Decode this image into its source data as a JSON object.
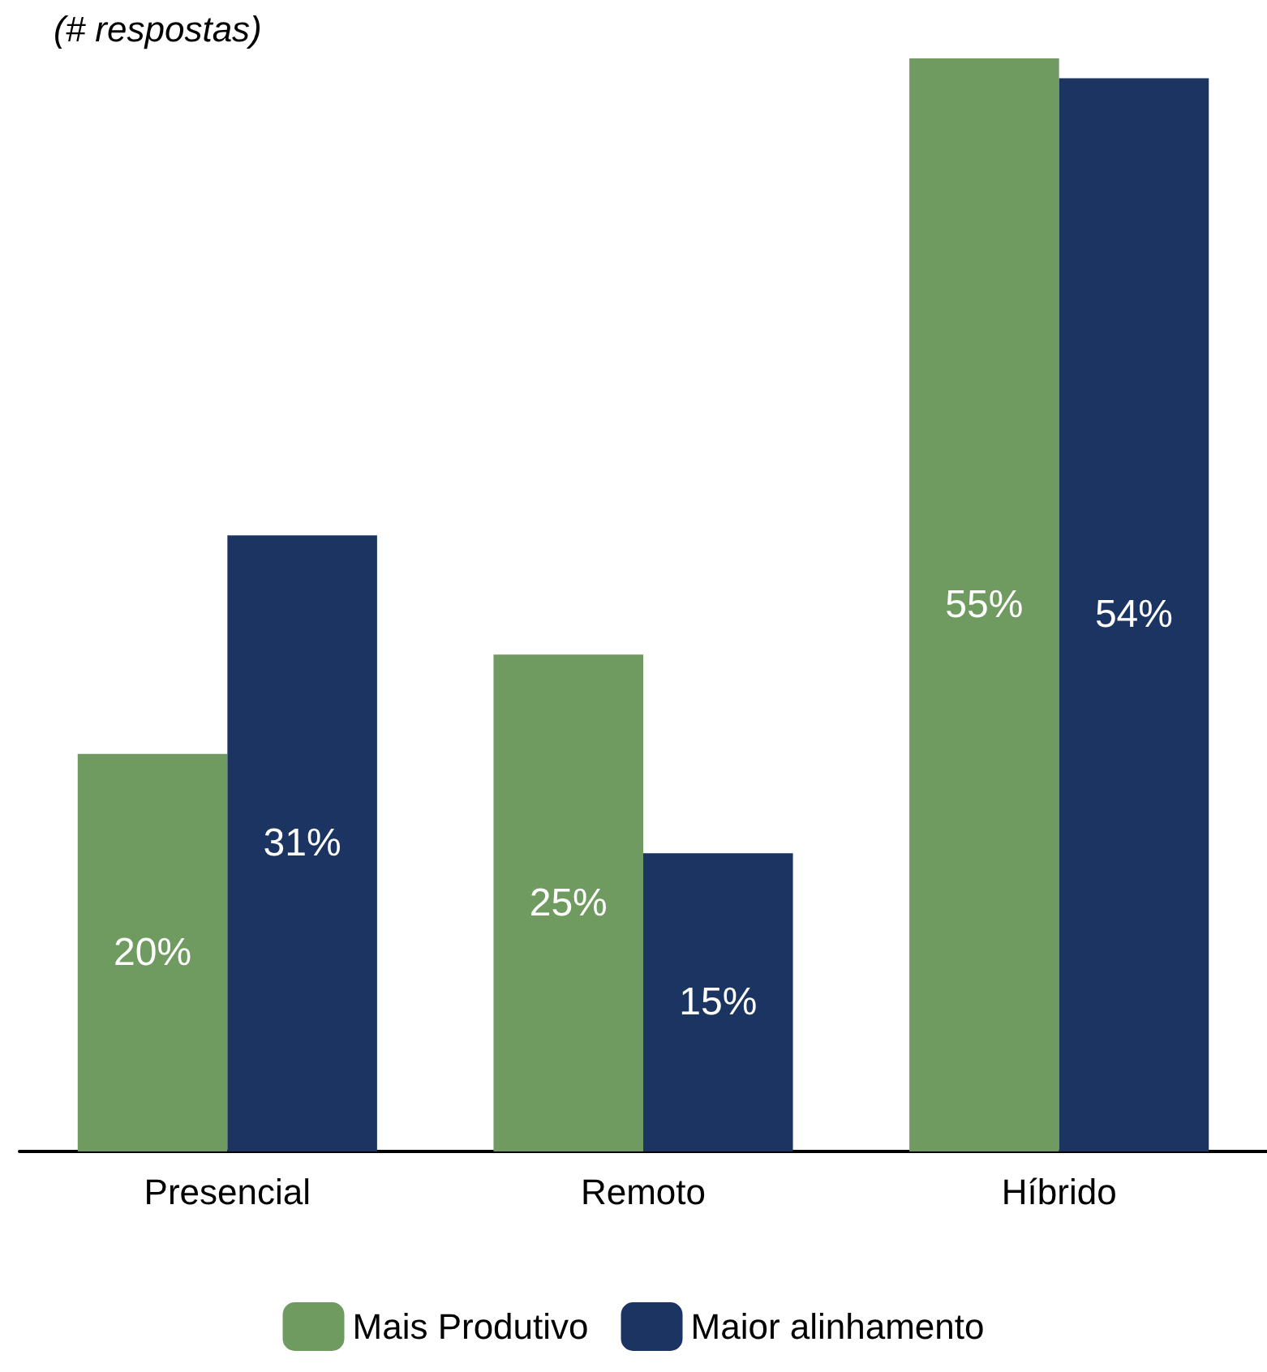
{
  "chart_data": {
    "type": "bar",
    "title": "(# respostas)",
    "categories": [
      "Presencial",
      "Remoto",
      "Híbrido"
    ],
    "series": [
      {
        "name": "Mais Produtivo",
        "color": "#6f9a60",
        "values": [
          20,
          25,
          55
        ],
        "value_labels": [
          "20%",
          "25%",
          "55%"
        ]
      },
      {
        "name": "Maior alinhamento",
        "color": "#1b3461",
        "values": [
          31,
          15,
          54
        ],
        "value_labels": [
          "31%",
          "15%",
          "54%"
        ]
      }
    ],
    "legend": "bottom"
  }
}
